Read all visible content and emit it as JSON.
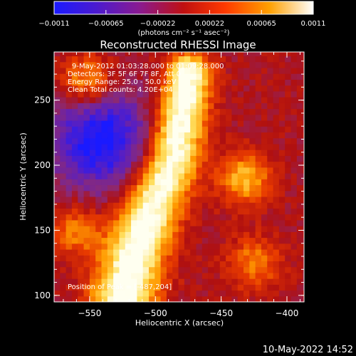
{
  "colorbar": {
    "ticks": [
      "-0.0011",
      "-0.00065",
      "-0.00022",
      "0.00022",
      "0.00065",
      "0.0011"
    ],
    "units_label": "(photons cm⁻² s⁻¹ asec⁻²)",
    "value_range": [
      -0.0011,
      0.0011
    ]
  },
  "footer": {
    "timestamp": "10-May-2022 14:52"
  },
  "chart_data": {
    "type": "heatmap",
    "title": "Reconstructed RHESSI Image",
    "xlabel": "Heliocentric X (arcsec)",
    "ylabel": "Heliocentric Y (arcsec)",
    "xlim": [
      -577,
      -387
    ],
    "ylim": [
      95,
      287
    ],
    "xticks": [
      -550,
      -500,
      -450,
      -400
    ],
    "yticks": [
      100,
      150,
      200,
      250
    ],
    "xtick_labels": [
      "−550",
      "−500",
      "−450",
      "−400"
    ],
    "ytick_labels": [
      "100",
      "150",
      "200",
      "250"
    ],
    "annotations": [
      "9-May-2012 01:03:28.000 to 01:09:28.000",
      "Detectors: 3F 5F 6F 7F 8F, Att 0",
      "Energy Range: 25.0 - 50.0 keV",
      "Clean     Total counts: 4.20E+04"
    ],
    "position_label": "Position of Peak = [-487,204]",
    "peak_position": [
      -487,
      204
    ],
    "colormap_stops": [
      "#1a1aff",
      "#5a1fc0",
      "#8a2a78",
      "#b01010",
      "#e83a00",
      "#ff9a00",
      "#ffe060",
      "#fffff0"
    ],
    "features": [
      {
        "name": "ridge",
        "points": [
          [
            -525,
            97
          ],
          [
            -515,
            135
          ],
          [
            -500,
            175
          ],
          [
            -487,
            204
          ],
          [
            -480,
            240
          ],
          [
            -475,
            270
          ]
        ],
        "value": 0.0011
      },
      {
        "name": "blob-east",
        "center": [
          -432,
          190
        ],
        "value": 0.0008
      },
      {
        "name": "blob-northwest",
        "center": [
          -552,
          265
        ],
        "value": 0.0008
      },
      {
        "name": "blob-southeast",
        "center": [
          -425,
          125
        ],
        "value": 0.0006
      },
      {
        "name": "blob-west",
        "center": [
          -560,
          150
        ],
        "value": 0.0006
      },
      {
        "name": "blue-region",
        "center": [
          -542,
          220
        ],
        "value": -0.00095
      }
    ]
  }
}
